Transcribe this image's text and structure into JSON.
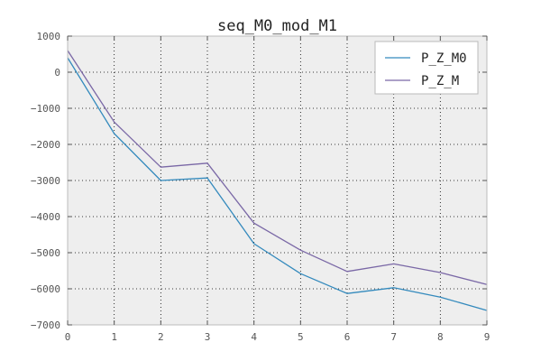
{
  "chart_data": {
    "type": "line",
    "title": "seq_M0_mod_M1",
    "xlabel": "",
    "ylabel": "",
    "x": [
      0,
      1,
      2,
      3,
      4,
      5,
      6,
      7,
      8,
      9
    ],
    "xlim": [
      0,
      9
    ],
    "ylim": [
      -7000,
      1000
    ],
    "xticks": [
      "0",
      "1",
      "2",
      "3",
      "4",
      "5",
      "6",
      "7",
      "8",
      "9"
    ],
    "yticks": [
      "1000",
      "0",
      "−1000",
      "−2000",
      "−3000",
      "−4000",
      "−5000",
      "−6000",
      "−7000"
    ],
    "ytick_values": [
      1000,
      0,
      -1000,
      -2000,
      -3000,
      -4000,
      -5000,
      -6000,
      -7000
    ],
    "grid": true,
    "legend_position": "top-right",
    "series": [
      {
        "name": "P_Z_M0",
        "color": "#348abd",
        "values": [
          400,
          -1700,
          -3000,
          -2930,
          -4750,
          -5580,
          -6130,
          -5970,
          -6230,
          -6600
        ]
      },
      {
        "name": "P_Z_M",
        "color": "#7a68a6",
        "values": [
          600,
          -1380,
          -2630,
          -2520,
          -4180,
          -4930,
          -5520,
          -5310,
          -5550,
          -5880
        ]
      }
    ],
    "colors": {
      "plot_background": "#eeeeee",
      "axes_edge": "#bcbcbc",
      "grid": "#000000"
    }
  }
}
